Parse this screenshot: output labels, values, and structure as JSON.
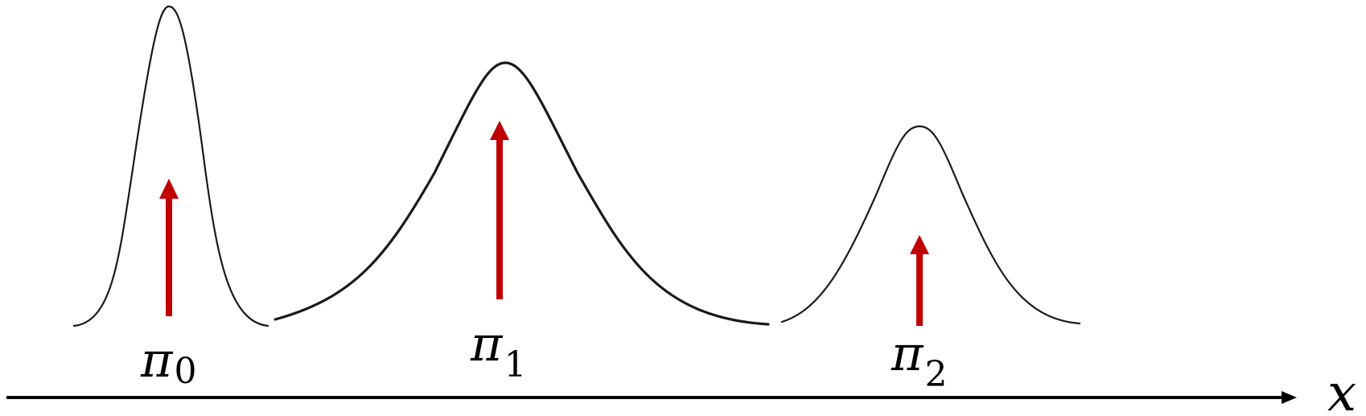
{
  "components": [
    {
      "symbol": "π",
      "subscript": "0",
      "relative_weight": 0.37,
      "relative_peak_height": 1.0,
      "relative_width": 0.5
    },
    {
      "symbol": "π",
      "subscript": "1",
      "relative_weight": 0.55,
      "relative_peak_height": 0.82,
      "relative_width": 1.25
    },
    {
      "symbol": "π",
      "subscript": "2",
      "relative_weight": 0.27,
      "relative_peak_height": 0.62,
      "relative_width": 0.75
    }
  ],
  "axis": {
    "label": "x"
  },
  "colors": {
    "curve": "#1a1a1a",
    "weight_arrow": "#c00000",
    "axis": "#000000",
    "background": "#ffffff"
  }
}
